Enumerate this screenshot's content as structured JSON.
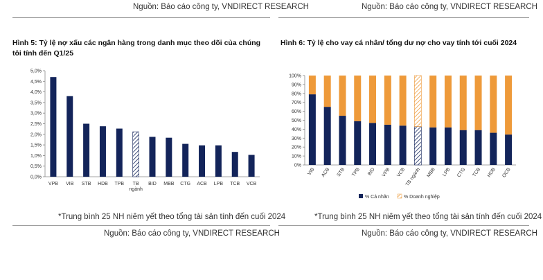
{
  "left": {
    "top_source": "Nguồn: Báo cáo công ty, VNDIRECT RESEARCH",
    "title": "Hình 5: Tỷ lệ nợ xấu các ngân hàng trong danh mục theo dõi của chúng tôi tính đến Q1/25",
    "footnote": "*Trung bình 25 NH niêm yết theo tổng tài sản tính đến cuối 2024",
    "bottom_source": "Nguồn: Báo cáo công ty, VNDIRECT RESEARCH"
  },
  "right": {
    "top_source": "Nguồn: Báo cáo công ty, VNDIRECT RESEARCH",
    "title": "Hình 6: Tỷ lệ cho vay cá nhân/ tổng dư nợ cho vay tính tới cuối 2024",
    "footnote": "*Trung bình 25 NH niêm yết theo tổng tài sản tính đến cuối 2024",
    "bottom_source": "Nguồn: Báo cáo công ty, VNDIRECT RESEARCH"
  },
  "chart_data": [
    {
      "type": "bar",
      "title": "Hình 5: Tỷ lệ nợ xấu các ngân hàng trong danh mục theo dõi của chúng tôi tính đến Q1/25",
      "categories": [
        "VPB",
        "VIB",
        "STB",
        "HDB",
        "TPB",
        "TB ngành",
        "BID",
        "MBB",
        "CTG",
        "ACB",
        "LPB",
        "TCB",
        "VCB"
      ],
      "values": [
        4.7,
        3.8,
        2.5,
        2.38,
        2.27,
        2.12,
        1.88,
        1.84,
        1.55,
        1.48,
        1.48,
        1.17,
        1.03
      ],
      "highlight_category": "TB ngành",
      "ylim": [
        0,
        5
      ],
      "yticks": [
        "0,0%",
        "0,5%",
        "1,0%",
        "1,5%",
        "2,0%",
        "2,5%",
        "3,0%",
        "3,5%",
        "4,0%",
        "4,5%",
        "5,0%"
      ],
      "color": "#13245a",
      "grid": false
    },
    {
      "type": "bar",
      "stacked": true,
      "title": "Hình 6: Tỷ lệ cho vay cá nhân/ tổng dư nợ cho vay tính tới cuối 2024",
      "categories": [
        "VIB",
        "ACB",
        "STB",
        "TPB",
        "BID",
        "VPB",
        "VCB",
        "TB ngành",
        "MBB",
        "LPB",
        "CTG",
        "TCB",
        "HDB",
        "OCB"
      ],
      "series": [
        {
          "name": "% Cá nhân",
          "color": "#13245a",
          "values": [
            79,
            65,
            55,
            49,
            47,
            45,
            44,
            43,
            42,
            42,
            39,
            39,
            36,
            34
          ]
        },
        {
          "name": "% Doanh nghiệp",
          "color": "#ee9a3a",
          "values": [
            21,
            35,
            45,
            51,
            53,
            55,
            56,
            57,
            58,
            58,
            61,
            61,
            64,
            66
          ]
        }
      ],
      "highlight_category": "TB ngành",
      "ylim": [
        0,
        100
      ],
      "yticks": [
        "0%",
        "10%",
        "20%",
        "30%",
        "40%",
        "50%",
        "60%",
        "70%",
        "80%",
        "90%",
        "100%"
      ],
      "legend_position": "bottom",
      "grid": false
    }
  ]
}
